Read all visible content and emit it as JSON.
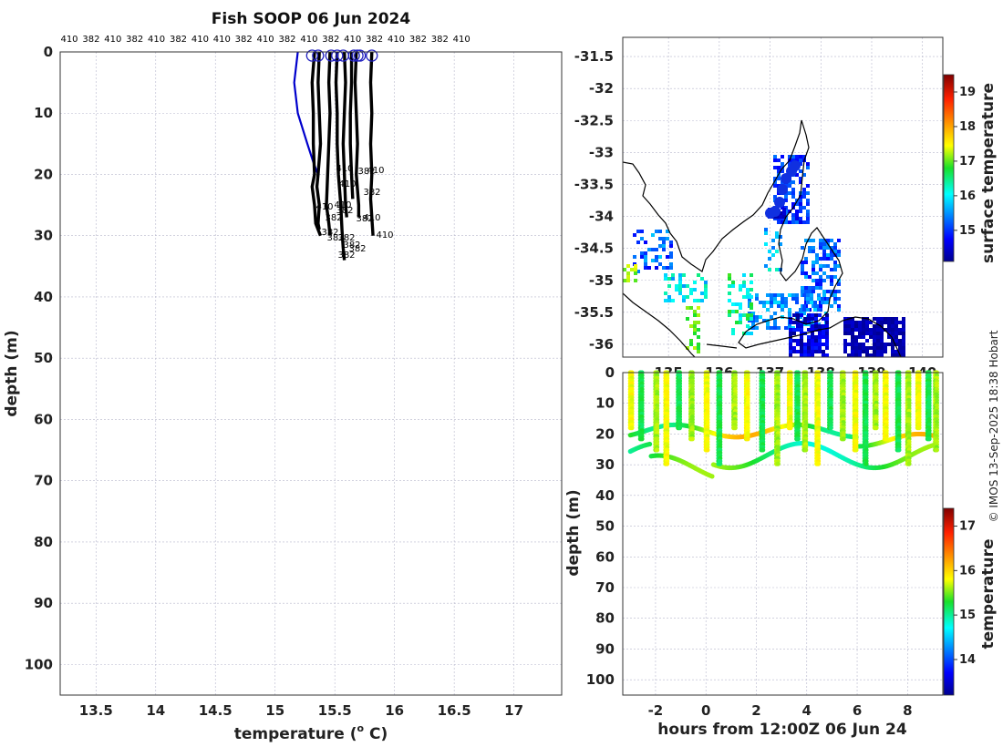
{
  "title": "Fish SOOP 06 Jun 2024",
  "credit": "© IMOS 13-Sep-2025 18:38 Hobart",
  "colors": {
    "profile": "#000000",
    "first_profile": "#0000cc",
    "circle": "#2020c0",
    "ocean_bg": "#ffffff"
  },
  "chart_data": [
    {
      "type": "line",
      "name": "profiles",
      "title": "Fish SOOP 06 Jun 2024",
      "xlabel_main": "temperature (",
      "xlabel_sup": "o",
      "xlabel_tail": " C)",
      "ylabel": "depth (m)",
      "xlim": [
        13.2,
        17.4
      ],
      "ylim": [
        105,
        0
      ],
      "xticks": [
        "13.5",
        "14",
        "14.5",
        "15",
        "15.5",
        "16",
        "16.5",
        "17"
      ],
      "yticks": [
        "0",
        "10",
        "20",
        "30",
        "40",
        "50",
        "60",
        "70",
        "80",
        "90",
        "100"
      ],
      "top_labels": [
        "410",
        "382",
        "410",
        "382",
        "410",
        "382",
        "410",
        "410",
        "382",
        "410",
        "382",
        "410",
        "382",
        "410",
        "382",
        "410",
        "382",
        "382",
        "410"
      ],
      "surface_temps": [
        15.31,
        15.36,
        15.47,
        15.52,
        15.57,
        15.66,
        15.69,
        15.71,
        15.81
      ],
      "profiles": [
        {
          "depth": [
            0,
            5,
            10,
            15,
            18,
            20
          ],
          "temp": [
            15.19,
            15.16,
            15.19,
            15.27,
            15.32,
            15.36
          ]
        },
        {
          "depth": [
            0,
            5,
            10,
            15,
            20,
            22,
            25,
            28,
            30
          ],
          "temp": [
            15.33,
            15.31,
            15.32,
            15.32,
            15.33,
            15.31,
            15.33,
            15.34,
            15.38
          ]
        },
        {
          "depth": [
            0,
            5,
            10,
            15,
            20,
            22,
            25,
            28,
            29
          ],
          "temp": [
            15.37,
            15.36,
            15.37,
            15.38,
            15.36,
            15.35,
            15.37,
            15.36,
            15.37
          ]
        },
        {
          "depth": [
            0,
            5,
            10,
            15,
            20,
            25,
            28,
            30
          ],
          "temp": [
            15.46,
            15.45,
            15.46,
            15.45,
            15.44,
            15.43,
            15.45,
            15.46
          ]
        },
        {
          "depth": [
            0,
            5,
            10,
            15,
            20,
            25,
            29,
            32,
            34
          ],
          "temp": [
            15.52,
            15.51,
            15.52,
            15.52,
            15.53,
            15.55,
            15.56,
            15.57,
            15.58
          ]
        },
        {
          "depth": [
            0,
            5,
            10,
            15,
            20,
            25,
            27
          ],
          "temp": [
            15.58,
            15.59,
            15.58,
            15.57,
            15.58,
            15.59,
            15.6
          ]
        },
        {
          "depth": [
            0,
            5,
            10,
            15,
            20,
            24
          ],
          "temp": [
            15.64,
            15.64,
            15.63,
            15.63,
            15.64,
            15.65
          ]
        },
        {
          "depth": [
            0,
            5,
            10,
            15,
            20,
            25,
            27
          ],
          "temp": [
            15.68,
            15.67,
            15.68,
            15.69,
            15.68,
            15.7,
            15.7
          ]
        },
        {
          "depth": [
            0,
            5,
            10,
            15,
            20,
            24,
            30
          ],
          "temp": [
            15.81,
            15.8,
            15.81,
            15.8,
            15.81,
            15.8,
            15.82
          ]
        }
      ],
      "annotations": [
        "410",
        "382",
        "410",
        "382",
        "410",
        "382",
        "382",
        "410",
        "382",
        "382",
        "410",
        "382",
        "382",
        "382",
        "410",
        "382",
        "410",
        "382"
      ]
    },
    {
      "type": "heatmap",
      "name": "surface-map",
      "xticks": [
        "135",
        "136",
        "137",
        "138",
        "139",
        "140"
      ],
      "yticks": [
        "-31.5",
        "-32",
        "-32.5",
        "-33",
        "-33.5",
        "-34",
        "-34.5",
        "-35",
        "-35.5",
        "-36"
      ],
      "xlim": [
        134.1,
        140.4
      ],
      "ylim": [
        -36.2,
        -31.2
      ],
      "colorbar_label": "surface temperature",
      "colorbar_ticks": [
        "15",
        "16",
        "17",
        "18",
        "19"
      ],
      "clim": [
        14.1,
        19.5
      ]
    },
    {
      "type": "scatter",
      "name": "depth-time",
      "xlabel": "hours from 12:00Z 06 Jun 24",
      "ylabel": "depth (m)",
      "xticks": [
        "-2",
        "0",
        "2",
        "4",
        "6",
        "8"
      ],
      "yticks": [
        "0",
        "10",
        "20",
        "30",
        "40",
        "50",
        "60",
        "70",
        "80",
        "90",
        "100"
      ],
      "xlim": [
        -3.3,
        9.4
      ],
      "ylim": [
        105,
        0
      ],
      "colorbar_label": "temperature",
      "colorbar_ticks": [
        "14",
        "15",
        "16",
        "17"
      ],
      "clim": [
        13.2,
        17.4
      ]
    }
  ]
}
